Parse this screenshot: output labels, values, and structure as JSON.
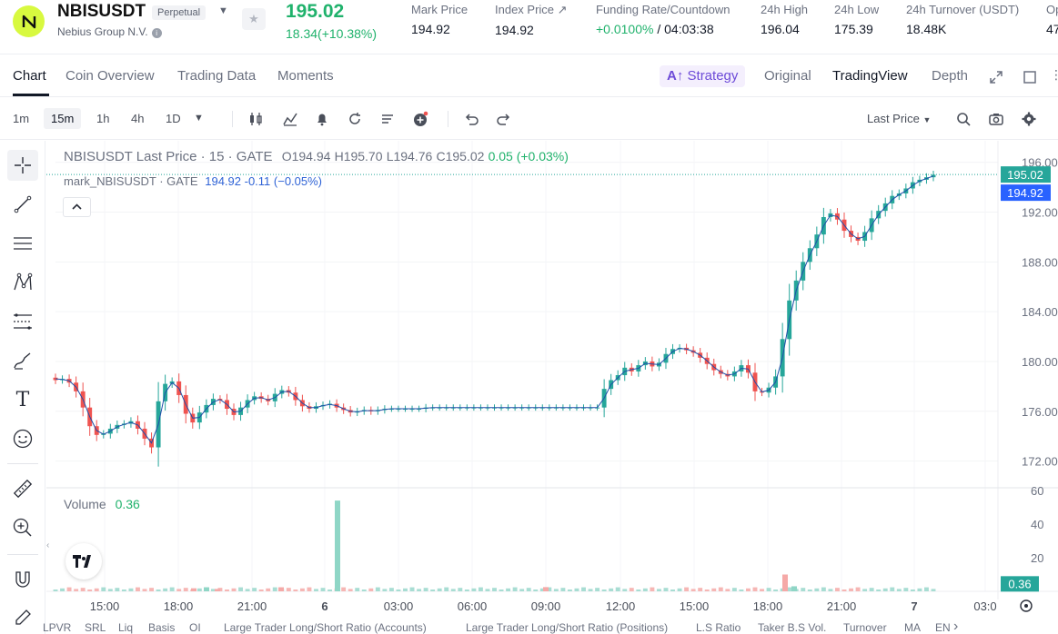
{
  "header": {
    "symbol": "NBISUSDT",
    "badge": "Perpetual",
    "company": "Nebius Group N.V.",
    "last_price": "195.02",
    "change": "18.34(+10.38%)",
    "stats": [
      {
        "label": "Mark Price",
        "value": "194.92"
      },
      {
        "label": "Index Price ↗",
        "value": "194.92"
      },
      {
        "label": "Funding Rate/Countdown",
        "value_green": "+0.0100%",
        "value": " / 04:03:38"
      },
      {
        "label": "24h High",
        "value": "196.04"
      },
      {
        "label": "24h Low",
        "value": "175.39"
      },
      {
        "label": "24h Turnover (USDT)",
        "value": "18.48K"
      },
      {
        "label": "Op",
        "value": "47"
      }
    ]
  },
  "tabs": {
    "left": [
      "Chart",
      "Coin Overview",
      "Trading Data",
      "Moments"
    ],
    "strategy": "Strategy",
    "right": [
      "Original",
      "TradingView",
      "Depth"
    ]
  },
  "toolbar": {
    "timeframes": [
      "1m",
      "15m",
      "1h",
      "4h",
      "1D"
    ],
    "price_source": "Last Price"
  },
  "legend": {
    "line1_name": "NBISUSDT Last Price · 15 · GATE",
    "open": "O194.94",
    "high": "H195.70",
    "low": "L194.76",
    "close": "C195.02",
    "delta": "0.05 (+0.03%)",
    "line2_name": "mark_NBISUSDT · GATE",
    "mark_value": "194.92",
    "mark_delta": "-0.11 (−0.05%)"
  },
  "volume": {
    "label": "Volume",
    "value": "0.36"
  },
  "colors": {
    "up": "#26a69a",
    "down": "#ef5350",
    "accent": "#20b26c",
    "mark": "#2f63d6"
  },
  "chart_data": {
    "type": "candlestick",
    "price_axis": {
      "ticks": [
        "196.00",
        "192.00",
        "188.00",
        "184.00",
        "180.00",
        "176.00",
        "172.00"
      ],
      "last_price_label": "195.02",
      "mark_price_label": "194.92",
      "ylim": [
        170,
        197
      ]
    },
    "volume_axis": {
      "ticks": [
        "60",
        "40",
        "20"
      ],
      "last_label": "0.36",
      "ylim": [
        0,
        60
      ]
    },
    "time_axis": [
      "15:00",
      "18:00",
      "21:00",
      "6",
      "03:00",
      "06:00",
      "09:00",
      "12:00",
      "15:00",
      "18:00",
      "21:00",
      "7",
      "03:0"
    ],
    "close_path": [
      178.5,
      178.6,
      178.3,
      177.6,
      176.3,
      174.8,
      174.1,
      174.2,
      174.6,
      174.9,
      175.0,
      175.2,
      174.6,
      173.8,
      173.1,
      176.8,
      178.2,
      178.4,
      177.3,
      175.8,
      175.1,
      175.9,
      176.5,
      177.0,
      176.9,
      176.2,
      175.7,
      176.3,
      176.9,
      177.2,
      177.0,
      176.8,
      177.4,
      177.7,
      177.5,
      176.9,
      176.4,
      176.2,
      176.4,
      176.5,
      176.6,
      176.3,
      176.1,
      175.9,
      176.0,
      176.1,
      176.0,
      176.1,
      176.2,
      176.2,
      176.2,
      176.2,
      176.2,
      176.2,
      176.3,
      176.3,
      176.3,
      176.3,
      176.3,
      176.3,
      176.3,
      176.3,
      176.3,
      176.3,
      176.3,
      176.3,
      176.3,
      176.3,
      176.3,
      176.3,
      176.3,
      176.3,
      176.3,
      176.3,
      176.3,
      176.3,
      176.3,
      176.3,
      176.3,
      176.3,
      177.8,
      178.5,
      178.9,
      179.5,
      179.2,
      179.7,
      180.0,
      179.6,
      179.9,
      180.6,
      181.0,
      181.1,
      180.9,
      180.7,
      180.3,
      179.8,
      179.3,
      179.0,
      178.8,
      179.2,
      179.7,
      179.1,
      177.6,
      177.5,
      177.9,
      178.8,
      181.8,
      184.9,
      186.5,
      188.0,
      189.1,
      190.2,
      191.6,
      191.9,
      191.4,
      190.5,
      190.0,
      189.7,
      190.4,
      191.5,
      192.1,
      192.7,
      193.3,
      193.5,
      193.9,
      194.4,
      194.6,
      194.8,
      195.0
    ],
    "volume_bars": [
      {
        "t": "18:00",
        "v": 1.8
      },
      {
        "t": "18:20",
        "v": 2.4
      },
      {
        "t": "18:40",
        "v": 1.4
      },
      {
        "t": "20:50",
        "v": 2.4
      },
      {
        "t": "6 00:00",
        "v": 54
      },
      {
        "t": "09:00",
        "v": 2.5
      },
      {
        "t": "18:20",
        "v": 10
      },
      {
        "t": "18:40",
        "v": 3.0
      }
    ]
  },
  "bottom_bar": [
    "LPVR",
    "SRL",
    "Liq",
    "Basis",
    "OI",
    "Large Trader Long/Short Ratio (Accounts)",
    "Large Trader Long/Short Ratio (Positions)",
    "L.S Ratio",
    "Taker B.S Vol.",
    "Turnover",
    "MA",
    "EN"
  ]
}
